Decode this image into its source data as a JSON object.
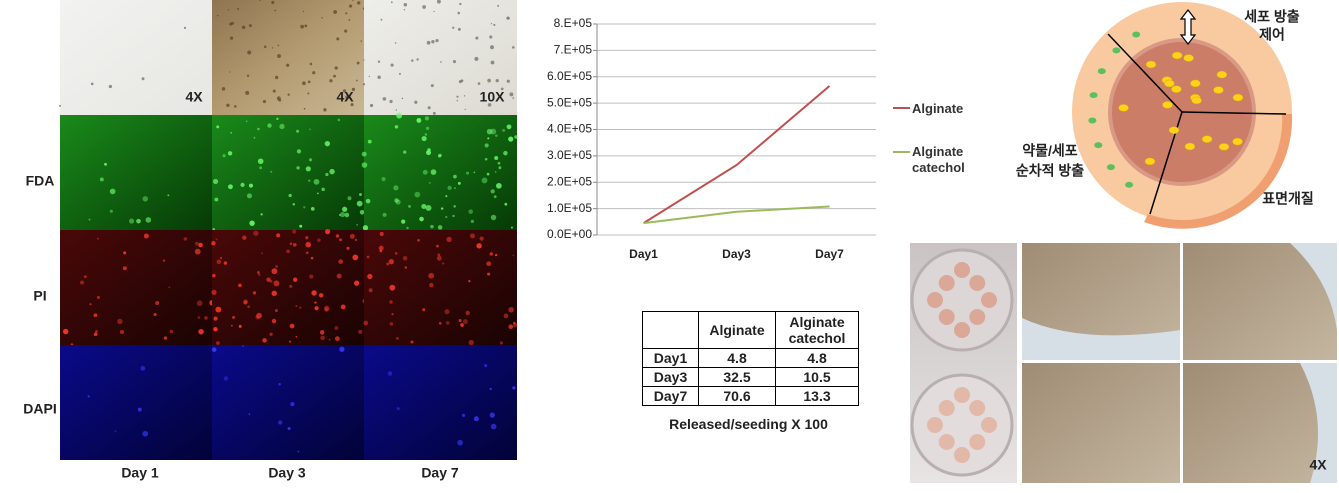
{
  "microscopy": {
    "columns": [
      "Day 1",
      "Day 3",
      "Day 7"
    ],
    "rows": [
      "FDA",
      "PI",
      "DAPI"
    ],
    "magnifications": [
      "4X",
      "4X",
      "10X"
    ]
  },
  "chart_data": {
    "type": "line",
    "categories": [
      "Day1",
      "Day3",
      "Day7"
    ],
    "series": [
      {
        "name": "Alginate",
        "color": "#c0504d",
        "values": [
          45000,
          265000,
          565000
        ]
      },
      {
        "name": "Alginate catechol",
        "color": "#9bbb59",
        "values": [
          45000,
          88000,
          108000
        ]
      }
    ],
    "ylim": [
      0,
      800000
    ],
    "yticks": [
      {
        "value": 0,
        "label": "0.0E+00"
      },
      {
        "value": 100000,
        "label": "1.0E+05"
      },
      {
        "value": 200000,
        "label": "2.0E+05"
      },
      {
        "value": 300000,
        "label": "3.0E+05"
      },
      {
        "value": 400000,
        "label": "4.0E+05"
      },
      {
        "value": 500000,
        "label": "5.0E+05"
      },
      {
        "value": 600000,
        "label": "6.0E+05"
      },
      {
        "value": 700000,
        "label": "7.E+05"
      },
      {
        "value": 800000,
        "label": "8.E+05"
      }
    ],
    "grid": true,
    "legend": "right"
  },
  "table": {
    "columns": [
      "Alginate",
      "Alginate catechol"
    ],
    "rows": [
      [
        "Day1",
        4.8,
        4.8
      ],
      [
        "Day3",
        32.5,
        10.5
      ],
      [
        "Day7",
        70.6,
        13.3
      ]
    ],
    "caption": "Released/seeding X 100"
  },
  "diagram": {
    "top_label": [
      "세포 방출",
      "제어"
    ],
    "left_label": [
      "약물/세포",
      "순차적 방출"
    ],
    "surface_label": "표면개질"
  },
  "photos": {
    "magnification": "4X"
  }
}
